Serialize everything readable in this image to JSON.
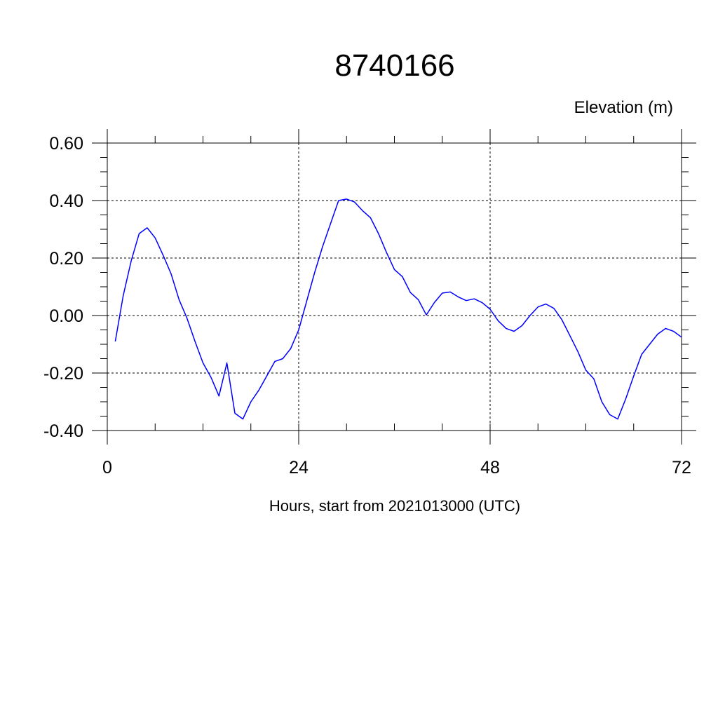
{
  "chart_data": {
    "type": "line",
    "title": "8740166",
    "ylabel": "Elevation (m)",
    "xlabel": "Hours, start from 2021013000 (UTC)",
    "xlim": [
      0,
      72
    ],
    "ylim": [
      -0.4,
      0.6
    ],
    "x_ticks": [
      0,
      24,
      48,
      72
    ],
    "x_tick_labels": [
      "0",
      "24",
      "48",
      "72"
    ],
    "y_ticks": [
      -0.4,
      -0.2,
      0.0,
      0.2,
      0.4,
      0.6
    ],
    "y_tick_labels": [
      "-0.40",
      "-0.20",
      "0.00",
      "0.20",
      "0.40",
      "0.60"
    ],
    "grid": true,
    "grid_style": "dashed",
    "series": [
      {
        "color": "#0000ff",
        "x": [
          1,
          2,
          3,
          4,
          5,
          6,
          7,
          8,
          9,
          10,
          11,
          12,
          13,
          14,
          15,
          16,
          17,
          18,
          19,
          20,
          21,
          22,
          23,
          24,
          25,
          26,
          27,
          28,
          29,
          30,
          31,
          32,
          33,
          34,
          35,
          36,
          37,
          38,
          39,
          40,
          41,
          42,
          43,
          44,
          45,
          46,
          47,
          48,
          49,
          50,
          51,
          52,
          53,
          54,
          55,
          56,
          57,
          58,
          59,
          60,
          61,
          62,
          63,
          64,
          65,
          66,
          67,
          68,
          69,
          70,
          71,
          72
        ],
        "y": [
          -0.09,
          0.07,
          0.19,
          0.285,
          0.305,
          0.27,
          0.21,
          0.145,
          0.055,
          -0.01,
          -0.09,
          -0.165,
          -0.215,
          -0.28,
          -0.165,
          -0.34,
          -0.36,
          -0.3,
          -0.26,
          -0.21,
          -0.16,
          -0.15,
          -0.115,
          -0.05,
          0.05,
          0.15,
          0.24,
          0.32,
          0.4,
          0.405,
          0.395,
          0.365,
          0.34,
          0.285,
          0.22,
          0.16,
          0.135,
          0.08,
          0.055,
          0.002,
          0.045,
          0.078,
          0.082,
          0.065,
          0.052,
          0.058,
          0.045,
          0.022,
          -0.018,
          -0.045,
          -0.055,
          -0.035,
          0.0,
          0.03,
          0.04,
          0.025,
          -0.015,
          -0.07,
          -0.125,
          -0.19,
          -0.22,
          -0.3,
          -0.345,
          -0.36,
          -0.29,
          -0.21,
          -0.135,
          -0.1,
          -0.065,
          -0.045,
          -0.055,
          -0.075
        ]
      }
    ]
  }
}
